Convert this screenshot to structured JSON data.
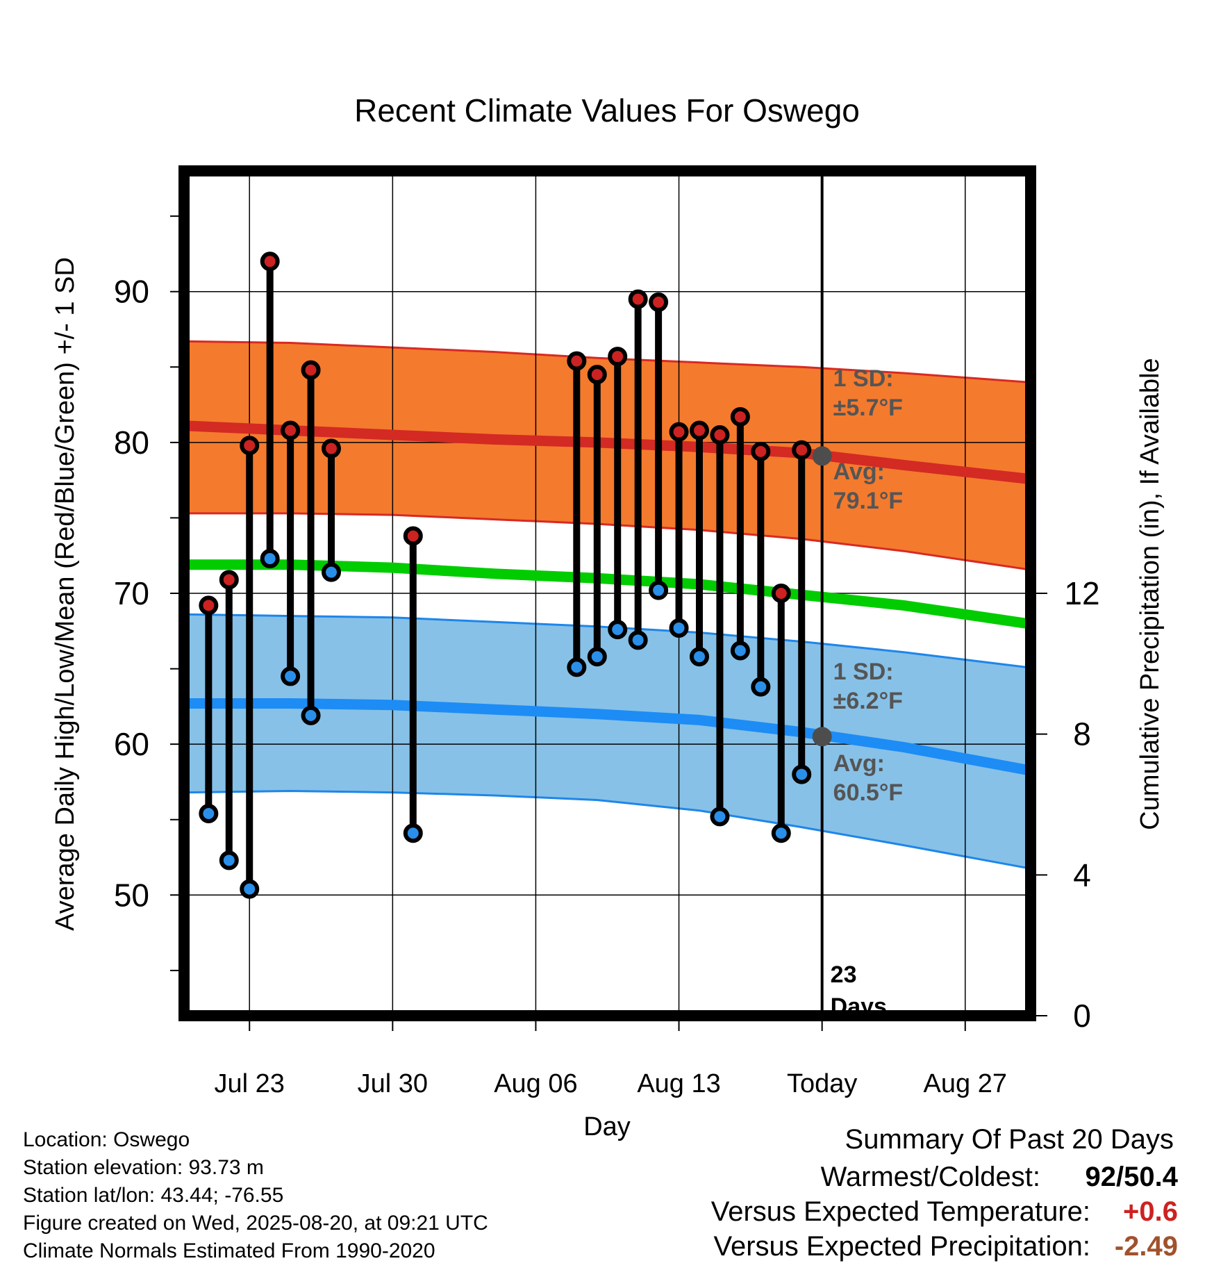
{
  "chart_data": {
    "type": "line",
    "title": "Recent Climate Values For Oswego",
    "xlabel": "Day",
    "ylabel": "Average Daily High/Low/Mean (Red/Blue/Green) +/- 1 SD",
    "y2label": "Cumulative Precipitation (in), If Available",
    "x_ticks": [
      {
        "label": "Jul 23",
        "day": 3
      },
      {
        "label": "Jul 30",
        "day": 10
      },
      {
        "label": "Aug 06",
        "day": 17
      },
      {
        "label": "Aug 13",
        "day": 24
      },
      {
        "label": "Today",
        "day": 31
      },
      {
        "label": "Aug 27",
        "day": 38
      }
    ],
    "xlim": [
      -0.2,
      41.2
    ],
    "ylim": [
      42,
      98
    ],
    "y_ticks": [
      50,
      60,
      70,
      80,
      90
    ],
    "y_minor_ticks": [
      45,
      55,
      65,
      75,
      85,
      95
    ],
    "y2lim": [
      0,
      24
    ],
    "y2_ticks": [
      0,
      4,
      8,
      12
    ],
    "grid": true,
    "today_marker": {
      "day": 31,
      "label_line1": "23",
      "label_line2": "Days"
    },
    "normals": {
      "days": [
        0,
        5,
        10,
        15,
        20,
        25,
        30,
        35,
        41
      ],
      "high_mean": [
        81.1,
        80.8,
        80.5,
        80.2,
        80.0,
        79.7,
        79.3,
        78.5,
        77.6
      ],
      "high_upper": [
        86.7,
        86.6,
        86.3,
        86.0,
        85.6,
        85.3,
        85.0,
        84.6,
        84.0
      ],
      "high_lower": [
        75.3,
        75.3,
        75.2,
        74.9,
        74.6,
        74.2,
        73.6,
        72.8,
        71.6
      ],
      "mean": [
        71.9,
        71.9,
        71.7,
        71.3,
        71.0,
        70.6,
        69.9,
        69.2,
        68.0
      ],
      "low_mean": [
        62.7,
        62.7,
        62.6,
        62.3,
        62.0,
        61.6,
        60.8,
        59.8,
        58.3
      ],
      "low_upper": [
        68.6,
        68.5,
        68.4,
        68.1,
        67.8,
        67.4,
        66.8,
        66.1,
        65.1
      ],
      "low_lower": [
        56.8,
        56.9,
        56.8,
        56.6,
        56.3,
        55.6,
        54.5,
        53.3,
        51.8
      ]
    },
    "normals_labels": {
      "high_sd_line1": "1 SD:",
      "high_sd_line2": "±5.7°F",
      "high_avg_line1": "Avg:",
      "high_avg_line2": "79.1°F",
      "low_sd_line1": "1 SD:",
      "low_sd_line2": "±6.2°F",
      "low_avg_line1": "Avg:",
      "low_avg_line2": "60.5°F",
      "high_avg_value": 79.1,
      "low_avg_value": 60.5
    },
    "observations": [
      {
        "day": 1,
        "high": 69.2,
        "low": 55.4
      },
      {
        "day": 2,
        "high": 70.9,
        "low": 52.3
      },
      {
        "day": 3,
        "high": 79.8,
        "low": 50.4
      },
      {
        "day": 4,
        "high": 92.0,
        "low": 72.3
      },
      {
        "day": 5,
        "high": 80.8,
        "low": 64.5
      },
      {
        "day": 6,
        "high": 84.8,
        "low": 61.9
      },
      {
        "day": 7,
        "high": 79.6,
        "low": 71.4
      },
      {
        "day": 11,
        "high": 73.8,
        "low": 54.1
      },
      {
        "day": 19,
        "high": 85.4,
        "low": 65.1
      },
      {
        "day": 20,
        "high": 84.5,
        "low": 65.8
      },
      {
        "day": 21,
        "high": 85.7,
        "low": 67.6
      },
      {
        "day": 22,
        "high": 89.5,
        "low": 66.9
      },
      {
        "day": 23,
        "high": 89.3,
        "low": 70.2
      },
      {
        "day": 24,
        "high": 80.7,
        "low": 67.7
      },
      {
        "day": 25,
        "high": 80.8,
        "low": 65.8
      },
      {
        "day": 26,
        "high": 80.5,
        "low": 55.2
      },
      {
        "day": 27,
        "high": 81.7,
        "low": 66.2
      },
      {
        "day": 28,
        "high": 79.4,
        "low": 63.8
      },
      {
        "day": 29,
        "high": 70.0,
        "low": 54.1
      },
      {
        "day": 30,
        "high": 79.5,
        "low": 58.0
      }
    ],
    "precipitation": {
      "start_day": 11,
      "end_day": 41,
      "value": 0.05
    },
    "colors": {
      "high_band": "#f47a2e",
      "high_band_edge": "#d62a22",
      "high_line": "#d42a24",
      "low_band": "#87c1e8",
      "low_band_edge": "#1e86e8",
      "low_line": "#1e8cf5",
      "mean_line": "#00cc00",
      "high_dot": "#cc2222",
      "low_dot": "#2a8fe8",
      "avg_dot": "#4d4d4d",
      "annotation": "#555555",
      "precip_line": "#009999"
    }
  },
  "footer": {
    "location": "Location: Oswego",
    "elevation": "Station elevation: 93.73 m",
    "latlon": "Station lat/lon: 43.44; -76.55",
    "created": "Figure created on Wed, 2025-08-20, at 09:21 UTC",
    "normals": "Climate Normals Estimated From 1990-2020"
  },
  "summary": {
    "title": "Summary Of Past 20 Days",
    "warmest_label": "Warmest/Coldest:",
    "warmest_value": "92/50.4",
    "temp_label": "Versus Expected Temperature:",
    "temp_value": "+0.6",
    "temp_color": "#cc2222",
    "precip_label": "Versus Expected Precipitation:",
    "precip_value": "-2.49",
    "precip_color": "#a0522d"
  }
}
